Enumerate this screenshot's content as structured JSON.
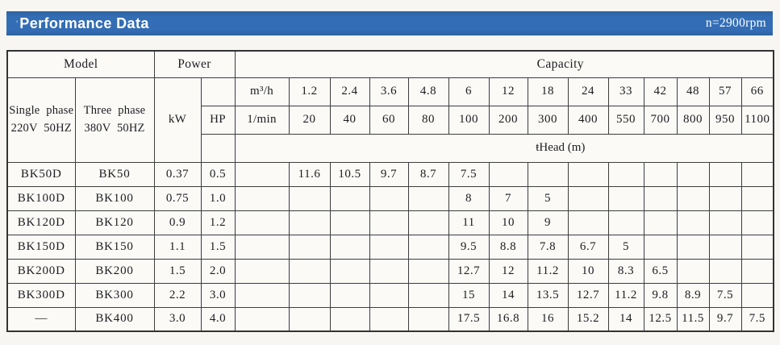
{
  "header": {
    "tick": "'",
    "title": "Performance Data",
    "rpm": "n=2900rpm",
    "bar_color": "#336db5"
  },
  "table": {
    "top_headers": {
      "model": "Model",
      "power": "Power",
      "capacity": "Capacity"
    },
    "model_columns": [
      {
        "line1": "Single phase",
        "line2": "220V 50HZ"
      },
      {
        "line1": "Three phase",
        "line2": "380V 50HZ"
      }
    ],
    "power_units": {
      "kw": "kW",
      "hp": "HP"
    },
    "flow_units": {
      "m3h": "m³/h",
      "lmin": "1/min"
    },
    "flow_m3h": [
      "1.2",
      "2.4",
      "3.6",
      "4.8",
      "6",
      "12",
      "18",
      "24",
      "33",
      "42",
      "48",
      "57",
      "66"
    ],
    "flow_lmin": [
      "20",
      "40",
      "60",
      "80",
      "100",
      "200",
      "300",
      "400",
      "550",
      "700",
      "800",
      "950",
      "1100"
    ],
    "head_label": "ŧHead (m)",
    "rows": [
      {
        "single": "BK50D",
        "three": "BK50",
        "kw": "0.37",
        "hp": "0.5",
        "heads": [
          "11.6",
          "10.5",
          "9.7",
          "8.7",
          "7.5",
          "",
          "",
          "",
          "",
          "",
          "",
          "",
          ""
        ]
      },
      {
        "single": "BK100D",
        "three": "BK100",
        "kw": "0.75",
        "hp": "1.0",
        "heads": [
          "",
          "",
          "",
          "",
          "8",
          "7",
          "5",
          "",
          "",
          "",
          "",
          "",
          ""
        ]
      },
      {
        "single": "BK120D",
        "three": "BK120",
        "kw": "0.9",
        "hp": "1.2",
        "heads": [
          "",
          "",
          "",
          "",
          "11",
          "10",
          "9",
          "",
          "",
          "",
          "",
          "",
          ""
        ]
      },
      {
        "single": "BK150D",
        "three": "BK150",
        "kw": "1.1",
        "hp": "1.5",
        "heads": [
          "",
          "",
          "",
          "",
          "9.5",
          "8.8",
          "7.8",
          "6.7",
          "5",
          "",
          "",
          "",
          ""
        ]
      },
      {
        "single": "BK200D",
        "three": "BK200",
        "kw": "1.5",
        "hp": "2.0",
        "heads": [
          "",
          "",
          "",
          "",
          "12.7",
          "12",
          "11.2",
          "10",
          "8.3",
          "6.5",
          "",
          "",
          ""
        ]
      },
      {
        "single": "BK300D",
        "three": "BK300",
        "kw": "2.2",
        "hp": "3.0",
        "heads": [
          "",
          "",
          "",
          "",
          "15",
          "14",
          "13.5",
          "12.7",
          "11.2",
          "9.8",
          "8.9",
          "7.5",
          ""
        ]
      },
      {
        "single": "—",
        "three": "BK400",
        "kw": "3.0",
        "hp": "4.0",
        "heads": [
          "",
          "",
          "",
          "",
          "17.5",
          "16.8",
          "16",
          "15.2",
          "14",
          "12.5",
          "11.5",
          "9.7",
          "7.5"
        ]
      }
    ]
  }
}
